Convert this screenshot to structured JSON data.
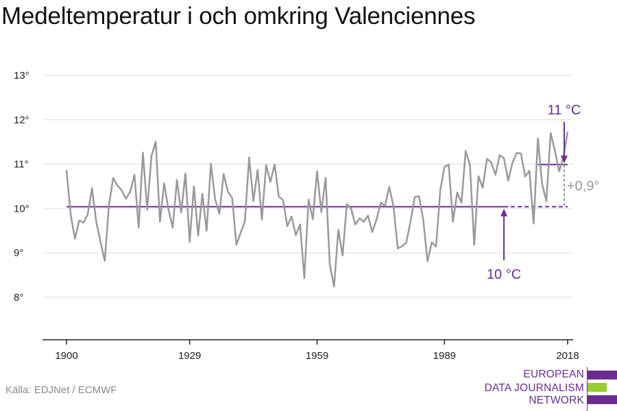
{
  "title": "Medeltemperatur i och omkring Valenciennes",
  "source": "Källa: EDJNet / ECMWF",
  "logo": {
    "lines": [
      "EUROPEAN",
      "DATA JOURNALISM",
      "NETWORK"
    ],
    "bar_colors": [
      "#6a2c91",
      "#9acd32",
      "#6a2c91"
    ]
  },
  "colors": {
    "series": "#999999",
    "accent": "#6a2c91",
    "annotation_gray": "#9a9a9a",
    "grid": "#dddddd",
    "axis": "#222222"
  },
  "chart_data": {
    "type": "line",
    "title": "Medeltemperatur i och omkring Valenciennes",
    "xlabel": "",
    "ylabel": "",
    "xlim": [
      1900,
      2018
    ],
    "ylim": [
      7,
      13
    ],
    "grid": true,
    "x_ticks": [
      1900,
      1929,
      1959,
      1989,
      2018
    ],
    "x_tick_labels": [
      "1900",
      "1929",
      "1959",
      "1989",
      "2018"
    ],
    "y_ticks": [
      8,
      9,
      10,
      11,
      12,
      13
    ],
    "y_tick_labels": [
      "8°",
      "9°",
      "10°",
      "11°",
      "12°",
      "13°"
    ],
    "series": [
      {
        "x": [
          1900,
          1901,
          1902,
          1903,
          1904,
          1905,
          1906,
          1907,
          1908,
          1909,
          1910,
          1911,
          1912,
          1913,
          1914,
          1915,
          1916,
          1917,
          1918,
          1919,
          1920,
          1921,
          1922,
          1923,
          1924,
          1925,
          1926,
          1927,
          1928,
          1929,
          1930,
          1931,
          1932,
          1933,
          1934,
          1935,
          1936,
          1937,
          1938,
          1939,
          1940,
          1941,
          1942,
          1943,
          1944,
          1945,
          1946,
          1947,
          1948,
          1949,
          1950,
          1951,
          1952,
          1953,
          1954,
          1955,
          1956,
          1957,
          1958,
          1959,
          1960,
          1961,
          1962,
          1963,
          1964,
          1965,
          1966,
          1967,
          1968,
          1969,
          1970,
          1971,
          1972,
          1973,
          1974,
          1975,
          1976,
          1977,
          1978,
          1979,
          1980,
          1981,
          1982,
          1983,
          1984,
          1985,
          1986,
          1987,
          1988,
          1989,
          1990,
          1991,
          1992,
          1993,
          1994,
          1995,
          1996,
          1997,
          1998,
          1999,
          2000,
          2001,
          2002,
          2003,
          2004,
          2005,
          2006,
          2007,
          2008,
          2009,
          2010,
          2011,
          2012,
          2013,
          2014,
          2015,
          2016,
          2017,
          2018
        ],
        "values": [
          10.87,
          9.85,
          9.32,
          9.73,
          9.68,
          9.87,
          10.46,
          9.7,
          9.25,
          8.82,
          10.07,
          10.69,
          10.52,
          10.41,
          10.22,
          10.38,
          10.76,
          9.57,
          11.26,
          9.97,
          11.18,
          11.51,
          9.7,
          10.57,
          9.98,
          9.57,
          10.64,
          9.91,
          10.79,
          9.25,
          10.5,
          9.39,
          10.33,
          9.5,
          11.01,
          10.21,
          9.88,
          10.78,
          10.38,
          10.24,
          9.18,
          9.45,
          9.71,
          11.15,
          10.17,
          10.87,
          9.75,
          10.98,
          10.6,
          10.99,
          10.27,
          10.19,
          9.6,
          9.82,
          9.4,
          9.64,
          8.43,
          10.2,
          9.76,
          10.84,
          9.92,
          10.69,
          8.73,
          8.24,
          9.52,
          8.94,
          10.1,
          10.0,
          9.64,
          9.78,
          9.7,
          9.84,
          9.47,
          9.75,
          10.13,
          10.06,
          10.49,
          10.04,
          9.1,
          9.15,
          9.23,
          9.7,
          10.26,
          10.28,
          9.74,
          8.81,
          9.24,
          9.14,
          10.4,
          10.94,
          10.99,
          9.7,
          10.36,
          10.13,
          11.3,
          10.98,
          9.18,
          10.73,
          10.47,
          11.12,
          11.04,
          10.76,
          11.2,
          11.13,
          10.63,
          11.03,
          11.25,
          11.24,
          10.72,
          10.85,
          9.66,
          11.58,
          10.55,
          10.17,
          11.7,
          11.3,
          10.84,
          11.15,
          11.73
        ]
      }
    ],
    "reference_lines": [
      {
        "label": "10 °C",
        "value": 10.04,
        "x_start": 1900,
        "x_end": 2018,
        "dashed_from": 2003
      },
      {
        "label": "11 °C",
        "value": 10.99,
        "x_start": 2011,
        "x_end": 2018
      }
    ],
    "annotations": {
      "low_label": "10 °C",
      "high_label": "11 °C",
      "difference_label": "+0,9°"
    }
  }
}
